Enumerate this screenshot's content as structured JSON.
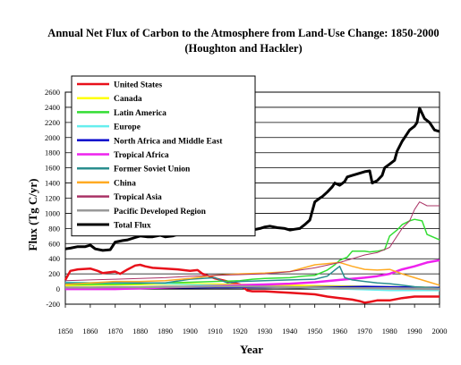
{
  "chart_data": {
    "type": "line",
    "title": "Annual Net Flux of Carbon to the Atmosphere from Land-Use Change: 1850-2000",
    "subtitle": "(Houghton and Hackler)",
    "xlabel": "Year",
    "ylabel": "Flux (Tg C/yr)",
    "xlim": [
      1850,
      2000
    ],
    "ylim": [
      -200,
      2600
    ],
    "xticks": [
      "1850",
      "1860",
      "1870",
      "1880",
      "1890",
      "1900",
      "1910",
      "1920",
      "1930",
      "1940",
      "1950",
      "1960",
      "1970",
      "1980",
      "1990",
      "2000"
    ],
    "yticks": [
      "2600",
      "2400",
      "2200",
      "2000",
      "1800",
      "1600",
      "1400",
      "1200",
      "1000",
      "800",
      "600",
      "400",
      "200",
      "0",
      "-200"
    ],
    "grid": "horizontal",
    "legend_position": "top-left",
    "series": [
      {
        "name": "United States",
        "color": "#e8101a",
        "width": 2.5,
        "x": [
          1850,
          1852,
          1855,
          1860,
          1863,
          1865,
          1870,
          1872,
          1875,
          1878,
          1880,
          1882,
          1885,
          1890,
          1895,
          1900,
          1903,
          1905,
          1910,
          1915,
          1920,
          1923,
          1925,
          1930,
          1935,
          1940,
          1945,
          1950,
          1955,
          1960,
          1965,
          1968,
          1970,
          1972,
          1975,
          1980,
          1985,
          1990,
          1995,
          2000
        ],
        "y": [
          120,
          240,
          260,
          270,
          240,
          210,
          230,
          200,
          260,
          310,
          320,
          300,
          280,
          270,
          260,
          240,
          250,
          200,
          140,
          100,
          60,
          -20,
          -30,
          -30,
          -40,
          -50,
          -60,
          -70,
          -100,
          -120,
          -140,
          -160,
          -180,
          -170,
          -150,
          -150,
          -120,
          -100,
          -100,
          -100
        ]
      },
      {
        "name": "Canada",
        "color": "#ffff00",
        "width": 2.5,
        "x": [
          1850,
          1860,
          1870,
          1880,
          1890,
          1900,
          1910,
          1920,
          1930,
          1940,
          1950,
          1960,
          1970,
          1980,
          1990,
          2000
        ],
        "y": [
          50,
          55,
          60,
          65,
          70,
          65,
          60,
          55,
          50,
          45,
          40,
          35,
          30,
          25,
          20,
          15
        ]
      },
      {
        "name": "Latin America",
        "color": "#33dd33",
        "width": 1.5,
        "x": [
          1850,
          1860,
          1870,
          1880,
          1890,
          1900,
          1910,
          1920,
          1925,
          1930,
          1940,
          1945,
          1950,
          1955,
          1958,
          1960,
          1963,
          1965,
          1970,
          1972,
          1975,
          1978,
          1980,
          1983,
          1985,
          1988,
          1990,
          1993,
          1995,
          2000
        ],
        "y": [
          60,
          60,
          65,
          70,
          80,
          90,
          100,
          110,
          130,
          140,
          150,
          170,
          180,
          250,
          320,
          380,
          420,
          500,
          500,
          490,
          500,
          520,
          700,
          780,
          850,
          900,
          920,
          900,
          720,
          650
        ]
      },
      {
        "name": "Europe",
        "color": "#66eeee",
        "width": 1.5,
        "x": [
          1850,
          1860,
          1870,
          1880,
          1890,
          1900,
          1910,
          1920,
          1930,
          1940,
          1950,
          1960,
          1970,
          1980,
          1990,
          2000
        ],
        "y": [
          90,
          85,
          80,
          80,
          70,
          60,
          50,
          40,
          30,
          20,
          10,
          0,
          -10,
          -20,
          -20,
          -20
        ]
      },
      {
        "name": "North Africa and Middle East",
        "color": "#0000cc",
        "width": 1.5,
        "x": [
          1850,
          1860,
          1870,
          1880,
          1890,
          1900,
          1910,
          1920,
          1930,
          1940,
          1950,
          1960,
          1970,
          1980,
          1990,
          2000
        ],
        "y": [
          10,
          10,
          12,
          12,
          15,
          15,
          18,
          20,
          20,
          25,
          30,
          30,
          35,
          30,
          25,
          20
        ]
      },
      {
        "name": "Tropical Africa",
        "color": "#ee22ee",
        "width": 2.5,
        "x": [
          1850,
          1860,
          1870,
          1880,
          1890,
          1900,
          1910,
          1920,
          1930,
          1940,
          1950,
          1960,
          1970,
          1975,
          1980,
          1985,
          1990,
          1995,
          2000
        ],
        "y": [
          0,
          0,
          0,
          10,
          20,
          30,
          40,
          50,
          60,
          70,
          90,
          120,
          150,
          170,
          200,
          260,
          300,
          350,
          380
        ]
      },
      {
        "name": "Former Soviet Union",
        "color": "#2a8e8e",
        "width": 1.5,
        "x": [
          1850,
          1860,
          1870,
          1880,
          1890,
          1900,
          1910,
          1915,
          1920,
          1930,
          1940,
          1950,
          1955,
          1958,
          1960,
          1962,
          1965,
          1970,
          1975,
          1980,
          1985,
          1990,
          1995,
          2000
        ],
        "y": [
          80,
          80,
          85,
          80,
          80,
          130,
          150,
          80,
          100,
          110,
          120,
          130,
          170,
          250,
          300,
          150,
          120,
          100,
          80,
          70,
          50,
          30,
          20,
          10
        ]
      },
      {
        "name": "China",
        "color": "#ffaa22",
        "width": 1.5,
        "x": [
          1850,
          1860,
          1870,
          1880,
          1890,
          1900,
          1910,
          1920,
          1930,
          1940,
          1950,
          1960,
          1965,
          1970,
          1975,
          1980,
          1985,
          1990,
          1995,
          2000
        ],
        "y": [
          60,
          80,
          100,
          100,
          110,
          140,
          180,
          200,
          210,
          230,
          320,
          350,
          300,
          260,
          250,
          260,
          200,
          150,
          100,
          50
        ]
      },
      {
        "name": "Tropical Asia",
        "color": "#aa3366",
        "width": 1.0,
        "x": [
          1850,
          1860,
          1870,
          1880,
          1890,
          1900,
          1910,
          1920,
          1930,
          1940,
          1950,
          1960,
          1965,
          1970,
          1975,
          1980,
          1983,
          1985,
          1988,
          1990,
          1992,
          1995,
          2000
        ],
        "y": [
          110,
          120,
          130,
          140,
          150,
          170,
          180,
          190,
          200,
          230,
          280,
          350,
          400,
          450,
          480,
          550,
          700,
          800,
          900,
          1050,
          1150,
          1100,
          1100
        ]
      },
      {
        "name": "Pacific Developed Region",
        "color": "#999999",
        "width": 2.5,
        "x": [
          1850,
          1860,
          1870,
          1880,
          1890,
          1900,
          1910,
          1920,
          1930,
          1940,
          1950,
          1960,
          1970,
          1980,
          1990,
          2000
        ],
        "y": [
          20,
          20,
          25,
          25,
          30,
          30,
          35,
          35,
          30,
          25,
          20,
          10,
          10,
          10,
          5,
          0
        ]
      },
      {
        "name": "Total Flux",
        "color": "#000000",
        "width": 3.0,
        "x": [
          1850,
          1852,
          1855,
          1858,
          1860,
          1862,
          1865,
          1868,
          1870,
          1873,
          1875,
          1878,
          1880,
          1883,
          1885,
          1888,
          1890,
          1893,
          1895,
          1898,
          1900,
          1903,
          1905,
          1907,
          1909,
          1910,
          1912,
          1914,
          1916,
          1918,
          1920,
          1922,
          1925,
          1928,
          1930,
          1932,
          1935,
          1938,
          1940,
          1942,
          1944,
          1946,
          1948,
          1950,
          1952,
          1953,
          1955,
          1957,
          1958,
          1960,
          1962,
          1963,
          1965,
          1967,
          1970,
          1972,
          1973,
          1975,
          1977,
          1978,
          1980,
          1982,
          1983,
          1985,
          1986,
          1988,
          1990,
          1991,
          1992,
          1994,
          1996,
          1998,
          2000
        ],
        "y": [
          530,
          540,
          560,
          560,
          580,
          530,
          510,
          520,
          620,
          640,
          650,
          680,
          700,
          690,
          690,
          710,
          690,
          700,
          720,
          740,
          760,
          800,
          840,
          870,
          880,
          850,
          790,
          760,
          730,
          720,
          720,
          760,
          780,
          800,
          820,
          830,
          810,
          800,
          780,
          790,
          800,
          850,
          910,
          1150,
          1200,
          1220,
          1280,
          1350,
          1400,
          1370,
          1420,
          1480,
          1500,
          1520,
          1550,
          1560,
          1400,
          1430,
          1500,
          1600,
          1650,
          1700,
          1820,
          1950,
          2000,
          2100,
          2150,
          2200,
          2390,
          2250,
          2200,
          2100,
          2080
        ]
      }
    ]
  }
}
